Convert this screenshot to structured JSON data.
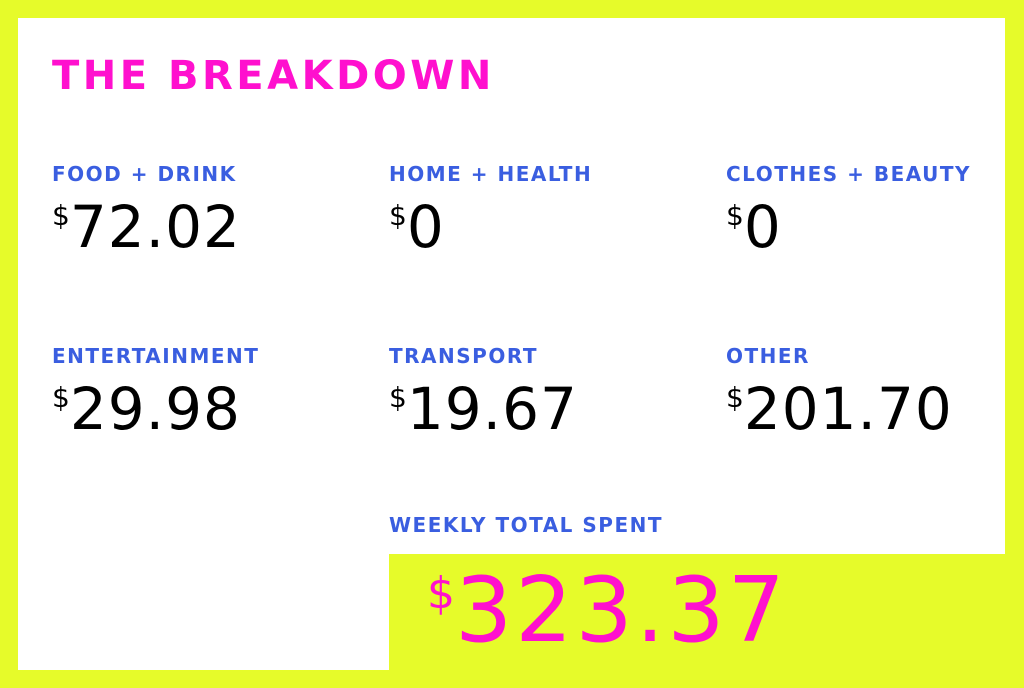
{
  "title": "THE BREAKDOWN",
  "currency_symbol": "$",
  "categories": [
    {
      "label": "FOOD + DRINK",
      "amount": "72.02"
    },
    {
      "label": "HOME + HEALTH",
      "amount": "0"
    },
    {
      "label": "CLOTHES + BEAUTY",
      "amount": "0"
    },
    {
      "label": "ENTERTAINMENT",
      "amount": "29.98"
    },
    {
      "label": "TRANSPORT",
      "amount": "19.67"
    },
    {
      "label": "OTHER",
      "amount": "201.70"
    }
  ],
  "total": {
    "label": "WEEKLY TOTAL SPENT",
    "amount": "323.37"
  },
  "colors": {
    "background": "#e6fb2a",
    "card": "#ffffff",
    "accent": "#ff10ce",
    "label": "#3a5ee0",
    "value": "#000000"
  }
}
